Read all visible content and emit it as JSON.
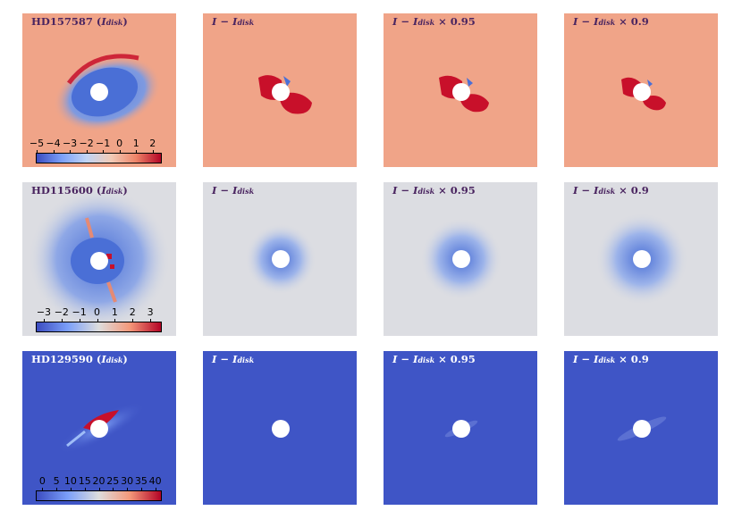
{
  "figure": {
    "rows": [
      {
        "star": "HD157587",
        "label": "HD157587 (I_disk)",
        "title_star": "HD157587",
        "colorbar": {
          "ticks": [
            "−5",
            "−4",
            "−3",
            "−2",
            "−1",
            "0",
            "1",
            "2"
          ],
          "range": [
            -5,
            2.5
          ]
        },
        "panels": [
          {
            "title": "HD157587 (I_disk)"
          },
          {
            "title": "I − I_disk"
          },
          {
            "title": "I − I_disk × 0.95"
          },
          {
            "title": "I − I_disk × 0.9"
          }
        ]
      },
      {
        "star": "HD115600",
        "label": "HD115600 (I_disk)",
        "title_star": "HD115600",
        "colorbar": {
          "ticks": [
            "−3",
            "−2",
            "−1",
            "0",
            "1",
            "2",
            "3"
          ],
          "range": [
            -3.4,
            3.6
          ]
        },
        "panels": [
          {
            "title": "HD115600 (I_disk)"
          },
          {
            "title": "I − I_disk"
          },
          {
            "title": "I − I_disk × 0.95"
          },
          {
            "title": "I − I_disk × 0.9"
          }
        ]
      },
      {
        "star": "HD129590",
        "label": "HD129590 (I_disk)",
        "title_star": "HD129590",
        "colorbar": {
          "ticks": [
            "0",
            "5",
            "10",
            "15",
            "20",
            "25",
            "30",
            "35",
            "40"
          ],
          "range": [
            -2,
            42
          ]
        },
        "panels": [
          {
            "title": "HD129590 (I_disk)"
          },
          {
            "title": "I − I_disk"
          },
          {
            "title": "I − I_disk × 0.95"
          },
          {
            "title": "I − I_disk × 0.9"
          }
        ]
      }
    ],
    "title_parts": {
      "disk_sub": "disk",
      "I": "I",
      "minus": " − ",
      "x095": " × 0.95",
      "x09": " × 0.9"
    },
    "colors": {
      "row1_bg": "#f0a488",
      "row2_bg": "#dcdde2",
      "row3_bg": "#3f55c6",
      "red": "#c8102a",
      "blue": "#4a6fd6",
      "label_row1_2": "#4a2560",
      "label_row3": "#ffffff"
    },
    "colormap": "coolwarm"
  }
}
